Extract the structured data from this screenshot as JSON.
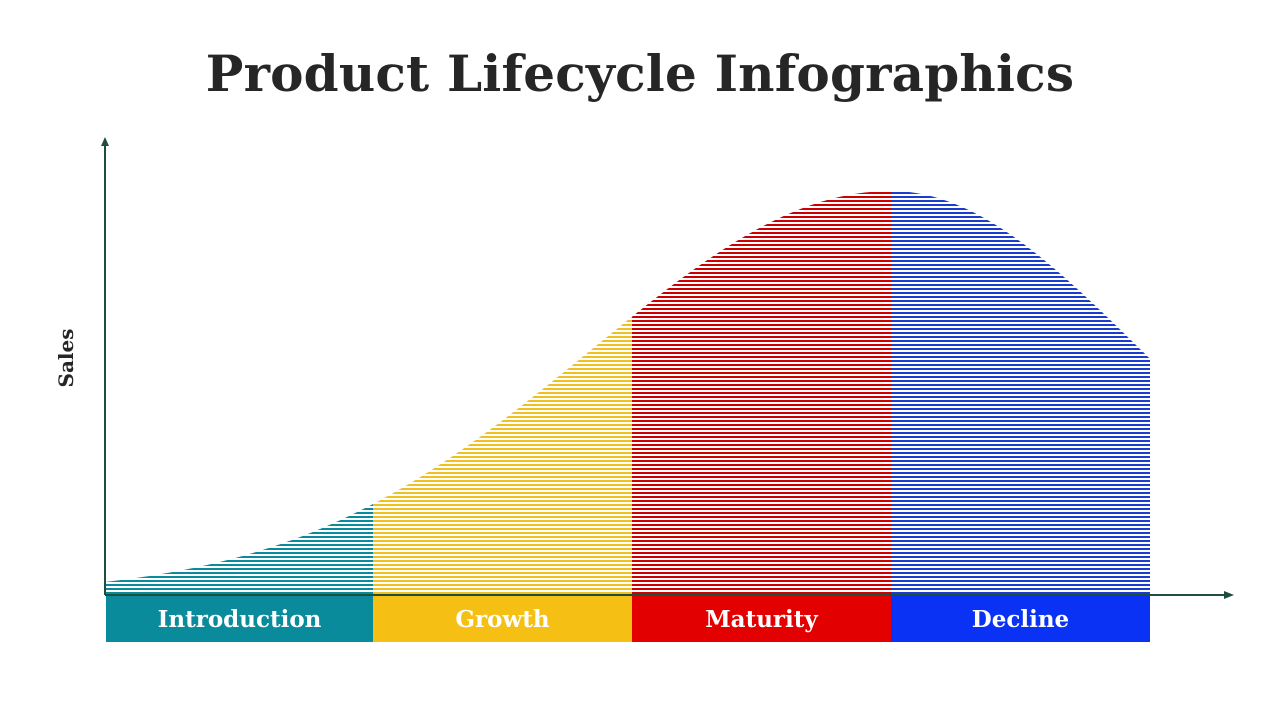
{
  "title": "Product Lifecycle Infographics",
  "y_axis_label": "Sales",
  "colors": {
    "axis": "#1f4e3d",
    "title_text": "#262626",
    "label_text": "#ffffff"
  },
  "stages": [
    {
      "label": "Introduction",
      "color": "#0a8b9c",
      "stripe_color": "#0a8b9c"
    },
    {
      "label": "Growth",
      "color": "#f5bf14",
      "stripe_color": "#f0c020"
    },
    {
      "label": "Maturity",
      "color": "#e30000",
      "stripe_color": "#cc0000"
    },
    {
      "label": "Decline",
      "color": "#0a32f5",
      "stripe_color": "#1a3ccf"
    }
  ],
  "fill_pattern": "horizontal-stripes"
}
